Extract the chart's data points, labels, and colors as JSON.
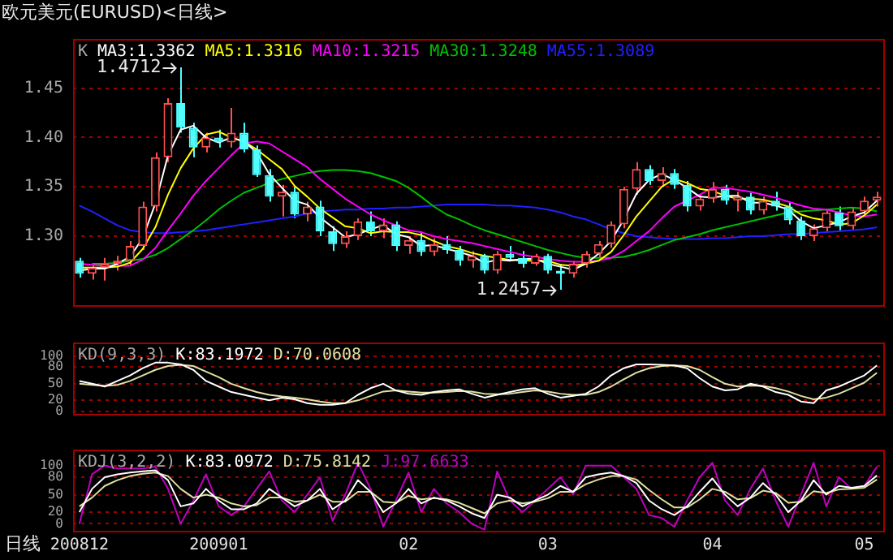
{
  "chart_data": [
    {
      "type": "candlestick",
      "title": "欧元美元(EURUSD)<日线>",
      "annotations": [
        "K",
        "1.4712",
        "1.2457"
      ],
      "categories": [
        "200812",
        null,
        null,
        null,
        null,
        null,
        null,
        null,
        null,
        null,
        null,
        "200901",
        null,
        null,
        null,
        null,
        null,
        null,
        null,
        null,
        null,
        null,
        null,
        null,
        null,
        null,
        "02",
        null,
        null,
        null,
        null,
        null,
        null,
        null,
        null,
        null,
        null,
        "03",
        null,
        null,
        null,
        null,
        null,
        null,
        null,
        null,
        null,
        null,
        null,
        null,
        "04",
        null,
        null,
        null,
        null,
        null,
        null,
        null,
        null,
        null,
        null,
        null,
        "05",
        null
      ],
      "ohlc": [
        [
          1.275,
          1.278,
          1.258,
          1.262
        ],
        [
          1.262,
          1.272,
          1.256,
          1.268
        ],
        [
          1.268,
          1.278,
          1.255,
          1.272
        ],
        [
          1.272,
          1.28,
          1.265,
          1.275
        ],
        [
          1.275,
          1.295,
          1.27,
          1.29
        ],
        [
          1.29,
          1.335,
          1.286,
          1.33
        ],
        [
          1.33,
          1.385,
          1.325,
          1.38
        ],
        [
          1.38,
          1.44,
          1.375,
          1.435
        ],
        [
          1.435,
          1.4712,
          1.405,
          1.41
        ],
        [
          1.41,
          1.415,
          1.38,
          1.39
        ],
        [
          1.39,
          1.405,
          1.385,
          1.4
        ],
        [
          1.4,
          1.408,
          1.39,
          1.395
        ],
        [
          1.395,
          1.43,
          1.39,
          1.405
        ],
        [
          1.405,
          1.415,
          1.385,
          1.388
        ],
        [
          1.388,
          1.392,
          1.36,
          1.362
        ],
        [
          1.362,
          1.368,
          1.335,
          1.34
        ],
        [
          1.34,
          1.352,
          1.32,
          1.345
        ],
        [
          1.345,
          1.35,
          1.318,
          1.322
        ],
        [
          1.322,
          1.335,
          1.315,
          1.33
        ],
        [
          1.33,
          1.336,
          1.3,
          1.305
        ],
        [
          1.305,
          1.31,
          1.285,
          1.292
        ],
        [
          1.292,
          1.305,
          1.288,
          1.3
        ],
        [
          1.3,
          1.318,
          1.296,
          1.315
        ],
        [
          1.315,
          1.325,
          1.3,
          1.305
        ],
        [
          1.305,
          1.318,
          1.298,
          1.312
        ],
        [
          1.312,
          1.315,
          1.285,
          1.29
        ],
        [
          1.29,
          1.3,
          1.282,
          1.296
        ],
        [
          1.296,
          1.305,
          1.28,
          1.284
        ],
        [
          1.284,
          1.298,
          1.28,
          1.292
        ],
        [
          1.292,
          1.3,
          1.282,
          1.286
        ],
        [
          1.286,
          1.29,
          1.27,
          1.275
        ],
        [
          1.275,
          1.285,
          1.268,
          1.28
        ],
        [
          1.28,
          1.282,
          1.262,
          1.265
        ],
        [
          1.265,
          1.285,
          1.262,
          1.282
        ],
        [
          1.282,
          1.29,
          1.275,
          1.278
        ],
        [
          1.278,
          1.285,
          1.268,
          1.272
        ],
        [
          1.272,
          1.282,
          1.27,
          1.28
        ],
        [
          1.28,
          1.282,
          1.262,
          1.265
        ],
        [
          1.265,
          1.272,
          1.2457,
          1.262
        ],
        [
          1.262,
          1.275,
          1.258,
          1.272
        ],
        [
          1.272,
          1.285,
          1.268,
          1.282
        ],
        [
          1.282,
          1.295,
          1.278,
          1.292
        ],
        [
          1.292,
          1.315,
          1.288,
          1.312
        ],
        [
          1.312,
          1.35,
          1.308,
          1.348
        ],
        [
          1.348,
          1.375,
          1.342,
          1.368
        ],
        [
          1.368,
          1.372,
          1.352,
          1.356
        ],
        [
          1.356,
          1.37,
          1.35,
          1.364
        ],
        [
          1.364,
          1.368,
          1.348,
          1.352
        ],
        [
          1.352,
          1.356,
          1.325,
          1.33
        ],
        [
          1.33,
          1.342,
          1.326,
          1.338
        ],
        [
          1.338,
          1.355,
          1.334,
          1.348
        ],
        [
          1.348,
          1.352,
          1.332,
          1.336
        ],
        [
          1.336,
          1.345,
          1.325,
          1.34
        ],
        [
          1.34,
          1.344,
          1.322,
          1.326
        ],
        [
          1.326,
          1.34,
          1.322,
          1.336
        ],
        [
          1.336,
          1.345,
          1.326,
          1.33
        ],
        [
          1.33,
          1.334,
          1.312,
          1.316
        ],
        [
          1.316,
          1.32,
          1.296,
          1.3
        ],
        [
          1.3,
          1.312,
          1.295,
          1.308
        ],
        [
          1.308,
          1.328,
          1.304,
          1.324
        ],
        [
          1.324,
          1.33,
          1.306,
          1.31
        ],
        [
          1.31,
          1.328,
          1.306,
          1.325
        ],
        [
          1.325,
          1.34,
          1.32,
          1.336
        ],
        [
          1.336,
          1.345,
          1.33,
          1.34
        ]
      ],
      "colors": [
        "#50ffff",
        "#ff5050",
        "#ff5050",
        "#ff5050",
        "#ff5050",
        "#ff5050",
        "#ff5050",
        "#ff5050",
        "#50ffff",
        "#50ffff",
        "#ff5050",
        "#50ffff",
        "#ff5050",
        "#50ffff",
        "#50ffff",
        "#50ffff",
        "#ff5050",
        "#50ffff",
        "#ff5050",
        "#50ffff",
        "#50ffff",
        "#ff5050",
        "#ff5050",
        "#50ffff",
        "#ff5050",
        "#50ffff",
        "#ff5050",
        "#50ffff",
        "#ff5050",
        "#50ffff",
        "#50ffff",
        "#ff5050",
        "#50ffff",
        "#ff5050",
        "#50ffff",
        "#50ffff",
        "#ff5050",
        "#50ffff",
        "#50ffff",
        "#ff5050",
        "#ff5050",
        "#ff5050",
        "#ff5050",
        "#ff5050",
        "#ff5050",
        "#50ffff",
        "#ff5050",
        "#50ffff",
        "#50ffff",
        "#ff5050",
        "#ff5050",
        "#50ffff",
        "#ff5050",
        "#50ffff",
        "#ff5050",
        "#50ffff",
        "#50ffff",
        "#50ffff",
        "#ff5050",
        "#ff5050",
        "#50ffff",
        "#ff5050",
        "#ff5050",
        "#ff5050"
      ],
      "series": [
        {
          "name": "MA3:1.3362",
          "type": "line",
          "color": "#ffffff",
          "values": [
            1.265,
            1.267,
            1.267,
            1.272,
            1.279,
            1.298,
            1.333,
            1.382,
            1.408,
            1.412,
            1.4,
            1.395,
            1.4,
            1.396,
            1.385,
            1.363,
            1.349,
            1.336,
            1.332,
            1.319,
            1.309,
            1.299,
            1.302,
            1.307,
            1.311,
            1.302,
            1.299,
            1.29,
            1.291,
            1.287,
            1.284,
            1.28,
            1.273,
            1.276,
            1.275,
            1.277,
            1.277,
            1.272,
            1.269,
            1.266,
            1.272,
            1.282,
            1.295,
            1.317,
            1.343,
            1.357,
            1.363,
            1.357,
            1.349,
            1.34,
            1.339,
            1.341,
            1.341,
            1.334,
            1.334,
            1.331,
            1.327,
            1.315,
            1.308,
            1.311,
            1.314,
            1.32,
            1.324,
            1.336
          ]
        },
        {
          "name": "MA5:1.3316",
          "type": "line",
          "color": "#ffff00",
          "values": [
            1.268,
            1.268,
            1.268,
            1.269,
            1.273,
            1.287,
            1.309,
            1.342,
            1.369,
            1.389,
            1.403,
            1.406,
            1.4,
            1.396,
            1.388,
            1.378,
            1.368,
            1.351,
            1.34,
            1.328,
            1.319,
            1.31,
            1.308,
            1.303,
            1.305,
            1.304,
            1.304,
            1.301,
            1.295,
            1.29,
            1.287,
            1.283,
            1.28,
            1.278,
            1.276,
            1.275,
            1.275,
            1.275,
            1.271,
            1.27,
            1.272,
            1.275,
            1.284,
            1.301,
            1.32,
            1.335,
            1.35,
            1.358,
            1.354,
            1.348,
            1.346,
            1.341,
            1.338,
            1.338,
            1.337,
            1.334,
            1.33,
            1.322,
            1.318,
            1.316,
            1.312,
            1.313,
            1.321,
            1.332
          ]
        },
        {
          "name": "MA10:1.3215",
          "type": "line",
          "color": "#ff00ff",
          "values": [
            1.272,
            1.271,
            1.27,
            1.27,
            1.27,
            1.276,
            1.288,
            1.306,
            1.323,
            1.341,
            1.356,
            1.369,
            1.382,
            1.394,
            1.396,
            1.394,
            1.386,
            1.378,
            1.37,
            1.358,
            1.348,
            1.338,
            1.33,
            1.322,
            1.316,
            1.311,
            1.306,
            1.304,
            1.3,
            1.297,
            1.295,
            1.293,
            1.29,
            1.287,
            1.284,
            1.281,
            1.279,
            1.277,
            1.275,
            1.274,
            1.274,
            1.275,
            1.278,
            1.285,
            1.295,
            1.305,
            1.318,
            1.33,
            1.336,
            1.342,
            1.349,
            1.349,
            1.347,
            1.345,
            1.342,
            1.339,
            1.335,
            1.331,
            1.328,
            1.327,
            1.324,
            1.321,
            1.32,
            1.322
          ]
        },
        {
          "name": "MA30:1.3248",
          "type": "line",
          "color": "#00c000",
          "values": [
            null,
            1.272,
            1.272,
            1.273,
            1.275,
            1.277,
            1.281,
            1.288,
            1.297,
            1.306,
            1.316,
            1.327,
            1.336,
            1.344,
            1.349,
            1.354,
            1.358,
            1.361,
            1.364,
            1.366,
            1.367,
            1.367,
            1.366,
            1.364,
            1.36,
            1.356,
            1.349,
            1.34,
            1.33,
            1.322,
            1.317,
            1.311,
            1.306,
            1.302,
            1.298,
            1.294,
            1.29,
            1.286,
            1.283,
            1.28,
            1.278,
            1.278,
            1.278,
            1.279,
            1.282,
            1.286,
            1.291,
            1.296,
            1.299,
            1.302,
            1.306,
            1.309,
            1.312,
            1.315,
            1.318,
            1.321,
            1.324,
            1.325,
            1.326,
            1.327,
            1.328,
            1.329,
            1.328,
            1.325
          ]
        },
        {
          "name": "MA55:1.3089",
          "type": "line",
          "color": "#2020ff",
          "values": [
            1.331,
            1.325,
            1.318,
            1.311,
            1.306,
            1.304,
            1.303,
            1.303,
            1.304,
            1.305,
            1.306,
            1.308,
            1.31,
            1.312,
            1.314,
            1.316,
            1.318,
            1.32,
            1.323,
            1.325,
            1.326,
            1.327,
            1.327,
            1.328,
            1.328,
            1.329,
            1.329,
            1.33,
            1.331,
            1.332,
            1.332,
            1.332,
            1.332,
            1.331,
            1.331,
            1.33,
            1.329,
            1.327,
            1.324,
            1.32,
            1.317,
            1.312,
            1.307,
            1.303,
            1.3,
            1.299,
            1.298,
            1.297,
            1.297,
            1.297,
            1.298,
            1.298,
            1.299,
            1.3,
            1.3,
            1.301,
            1.302,
            1.302,
            1.303,
            1.304,
            1.305,
            1.306,
            1.307,
            1.309
          ]
        }
      ],
      "ylim": [
        1.23,
        1.5
      ],
      "yticks": [
        {
          "value": 1.3,
          "label": "1.30"
        },
        1.35,
        {
          "value": 1.4,
          "label": "1.40"
        },
        1.45
      ],
      "grid": "y",
      "legend": "top left",
      "tick_labels": "y"
    },
    {
      "type": "line",
      "title": "KD(9,3,3)",
      "categories": [
        "200812",
        null,
        null,
        null,
        null,
        null,
        null,
        null,
        null,
        null,
        null,
        "200901",
        null,
        null,
        null,
        null,
        null,
        null,
        null,
        null,
        null,
        null,
        null,
        null,
        null,
        null,
        "02",
        null,
        null,
        null,
        null,
        null,
        null,
        null,
        null,
        null,
        null,
        "03",
        null,
        null,
        null,
        null,
        null,
        null,
        null,
        null,
        null,
        null,
        null,
        null,
        "04",
        null,
        null,
        null,
        null,
        null,
        null,
        null,
        null,
        null,
        null,
        null,
        "05",
        null
      ],
      "series": [
        {
          "name": "K:83.1972",
          "color": "#ffffff",
          "values": [
            55,
            50,
            45,
            55,
            65,
            78,
            88,
            88,
            85,
            75,
            55,
            45,
            35,
            30,
            25,
            20,
            25,
            22,
            15,
            12,
            12,
            15,
            30,
            42,
            50,
            38,
            32,
            30,
            35,
            38,
            40,
            32,
            25,
            30,
            35,
            40,
            42,
            32,
            25,
            28,
            32,
            45,
            65,
            78,
            85,
            85,
            84,
            83,
            78,
            60,
            45,
            38,
            40,
            50,
            45,
            35,
            30,
            18,
            15,
            38,
            45,
            55,
            65,
            83
          ]
        },
        {
          "name": "D:70.0608",
          "color": "#e0e0a0",
          "values": [
            50,
            48,
            46,
            48,
            55,
            65,
            75,
            82,
            84,
            82,
            72,
            62,
            50,
            42,
            35,
            30,
            27,
            25,
            22,
            18,
            15,
            15,
            20,
            28,
            36,
            38,
            36,
            34,
            34,
            35,
            37,
            36,
            32,
            31,
            32,
            35,
            38,
            36,
            32,
            30,
            30,
            35,
            45,
            58,
            70,
            78,
            82,
            83,
            82,
            75,
            62,
            50,
            45,
            47,
            46,
            42,
            36,
            28,
            22,
            25,
            32,
            42,
            52,
            70
          ]
        }
      ],
      "ylim": [
        -5,
        125
      ],
      "yticks": [
        0,
        20,
        50,
        80,
        100
      ],
      "grid": "y",
      "legend": "top left",
      "tick_labels": "y"
    },
    {
      "type": "line",
      "title": "KDJ(3,2,2)",
      "xlabel": "日线",
      "categories": [
        "200812",
        null,
        null,
        null,
        null,
        null,
        null,
        null,
        null,
        null,
        null,
        "200901",
        null,
        null,
        null,
        null,
        null,
        null,
        null,
        null,
        null,
        null,
        null,
        null,
        null,
        null,
        "02",
        null,
        null,
        null,
        null,
        null,
        null,
        null,
        null,
        null,
        null,
        "03",
        null,
        null,
        null,
        null,
        null,
        null,
        null,
        null,
        null,
        null,
        null,
        null,
        "04",
        null,
        null,
        null,
        null,
        null,
        null,
        null,
        null,
        null,
        null,
        null,
        "05",
        null
      ],
      "series": [
        {
          "name": "K:83.0972",
          "color": "#ffffff",
          "values": [
            20,
            60,
            80,
            85,
            88,
            90,
            92,
            75,
            30,
            35,
            60,
            40,
            25,
            25,
            35,
            60,
            45,
            30,
            40,
            60,
            25,
            40,
            75,
            55,
            20,
            35,
            60,
            35,
            45,
            40,
            30,
            18,
            10,
            50,
            45,
            30,
            40,
            50,
            65,
            55,
            80,
            85,
            88,
            82,
            70,
            40,
            25,
            15,
            30,
            55,
            78,
            50,
            30,
            45,
            70,
            50,
            20,
            40,
            75,
            50,
            65,
            62,
            65,
            83
          ]
        },
        {
          "name": "D:75.8142",
          "color": "#e0e0a0",
          "values": [
            30,
            45,
            65,
            75,
            82,
            86,
            88,
            82,
            60,
            45,
            50,
            45,
            35,
            30,
            32,
            45,
            45,
            38,
            40,
            50,
            38,
            38,
            55,
            55,
            38,
            36,
            48,
            42,
            44,
            42,
            36,
            27,
            18,
            35,
            40,
            35,
            38,
            44,
            55,
            55,
            68,
            76,
            82,
            82,
            76,
            58,
            42,
            28,
            28,
            42,
            60,
            55,
            42,
            44,
            57,
            53,
            36,
            38,
            56,
            53,
            59,
            60,
            62,
            76
          ]
        },
        {
          "name": "J:97.6633",
          "color": "#c000c0",
          "values": [
            0,
            85,
            100,
            95,
            95,
            95,
            98,
            60,
            0,
            40,
            85,
            30,
            15,
            30,
            60,
            90,
            40,
            20,
            50,
            80,
            5,
            50,
            105,
            60,
            -5,
            40,
            88,
            20,
            60,
            35,
            20,
            0,
            -10,
            90,
            40,
            20,
            40,
            60,
            80,
            50,
            100,
            100,
            100,
            80,
            60,
            15,
            10,
            -5,
            40,
            80,
            105,
            40,
            15,
            60,
            95,
            40,
            -5,
            50,
            105,
            30,
            80,
            60,
            65,
            98
          ]
        }
      ],
      "ylim": [
        -12,
        128
      ],
      "yticks": [
        0,
        20,
        50,
        80,
        100
      ],
      "grid": "y",
      "legend": "top left"
    }
  ]
}
